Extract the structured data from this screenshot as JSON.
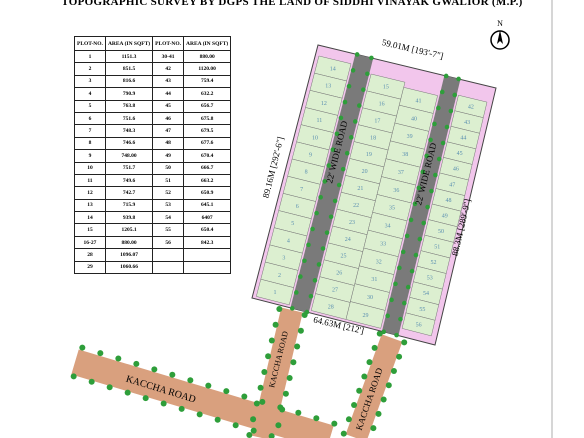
{
  "title": "TOPOGRAPHIC SURVEY BY DGPS THE LAND OF SIDDHI VINAYAK GWALIOR (M.P.)",
  "north": "N",
  "table": {
    "header": [
      "PLOT-NO.",
      "AREA (IN SQFT)",
      "PLOT-NO.",
      "AREA (IN SQFT)"
    ],
    "rows": [
      [
        "1",
        "1151.3",
        "30-41",
        "880.00"
      ],
      [
        "2",
        "851.5",
        "42",
        "1120.00"
      ],
      [
        "3",
        "816.6",
        "43",
        "759.4"
      ],
      [
        "4",
        "790.9",
        "44",
        "632.2"
      ],
      [
        "5",
        "763.8",
        "45",
        "656.7"
      ],
      [
        "6",
        "751.6",
        "46",
        "675.8"
      ],
      [
        "7",
        "748.3",
        "47",
        "679.5"
      ],
      [
        "8",
        "746.6",
        "48",
        "677.6"
      ],
      [
        "9",
        "748.00",
        "49",
        "670.4"
      ],
      [
        "10",
        "751.7",
        "50",
        "666.7"
      ],
      [
        "11",
        "749.6",
        "51",
        "663.2"
      ],
      [
        "12",
        "742.7",
        "52",
        "650.9"
      ],
      [
        "13",
        "715.9",
        "53",
        "645.1"
      ],
      [
        "14",
        "939.8",
        "54",
        "6407"
      ],
      [
        "15",
        "1205.1",
        "55",
        "650.4"
      ],
      [
        "16-27",
        "880.00",
        "56",
        "842.3"
      ],
      [
        "28",
        "1096.07"
      ],
      [
        "29",
        "1060.66"
      ]
    ]
  },
  "dimensions": {
    "top": "59.01M [193'-7\"]",
    "left": "89.16M [292'-6\"]",
    "right": "88.3M [289'-9\"]",
    "bottom": "64.63M [212']"
  },
  "site_roads": [
    "22' WIDE ROAD",
    "22' WIDE ROAD"
  ],
  "kaccha_roads": [
    "KACCHA ROAD",
    "KACCHA ROAD",
    "KACCHA ROAD"
  ],
  "plot_columns": [
    [
      "14",
      "13",
      "12",
      "11",
      "10",
      "9",
      "8",
      "7",
      "6",
      "5",
      "4",
      "3",
      "2",
      "1"
    ],
    [
      "15",
      "16",
      "17",
      "18",
      "19",
      "20",
      "21",
      "22",
      "23",
      "24",
      "25",
      "26",
      "27",
      "28"
    ],
    [
      "41",
      "40",
      "39",
      "38",
      "37",
      "36",
      "35",
      "34",
      "33",
      "32",
      "31",
      "30",
      "29"
    ],
    [
      "42",
      "43",
      "44",
      "45",
      "46",
      "47",
      "48",
      "49",
      "50",
      "51",
      "52",
      "53",
      "54",
      "55",
      "56"
    ]
  ]
}
